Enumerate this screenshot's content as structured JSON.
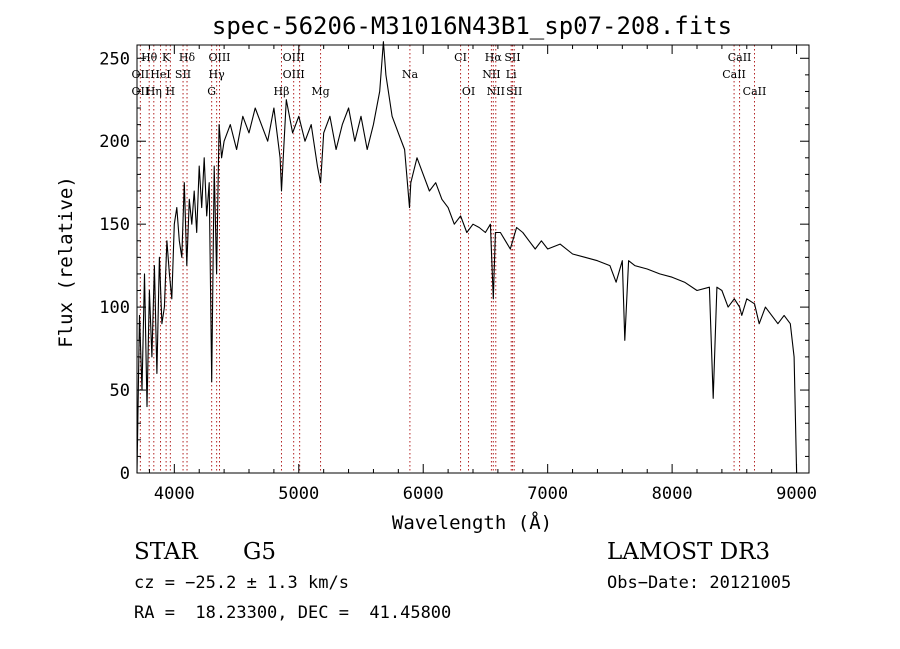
{
  "chart_data": {
    "type": "line",
    "title": "spec-56206-M31016N43B1_sp07-208.fits",
    "xlabel": "Wavelength (Å)",
    "ylabel": "Flux (relative)",
    "xlim": [
      3700,
      9100
    ],
    "ylim": [
      0,
      258
    ],
    "xticks": [
      4000,
      5000,
      6000,
      7000,
      8000,
      9000
    ],
    "xtick_labels": [
      "4000",
      "5000",
      "6000",
      "7000",
      "8000",
      "9000"
    ],
    "yticks": [
      0,
      50,
      100,
      150,
      200,
      250
    ],
    "ytick_labels": [
      "0",
      "50",
      "100",
      "150",
      "200",
      "250"
    ],
    "series": [
      {
        "name": "flux",
        "x": [
          3700,
          3720,
          3740,
          3760,
          3780,
          3800,
          3820,
          3840,
          3860,
          3880,
          3900,
          3920,
          3940,
          3960,
          3980,
          4000,
          4020,
          4040,
          4060,
          4080,
          4100,
          4120,
          4140,
          4160,
          4180,
          4200,
          4220,
          4240,
          4260,
          4280,
          4300,
          4320,
          4340,
          4360,
          4380,
          4400,
          4450,
          4500,
          4550,
          4600,
          4650,
          4700,
          4750,
          4800,
          4850,
          4861,
          4900,
          4950,
          5000,
          5050,
          5100,
          5150,
          5175,
          5200,
          5250,
          5300,
          5350,
          5400,
          5450,
          5500,
          5550,
          5600,
          5650,
          5680,
          5700,
          5750,
          5800,
          5850,
          5890,
          5900,
          5950,
          6000,
          6050,
          6100,
          6150,
          6200,
          6250,
          6300,
          6350,
          6400,
          6450,
          6500,
          6540,
          6563,
          6580,
          6620,
          6660,
          6700,
          6750,
          6800,
          6850,
          6900,
          6950,
          7000,
          7100,
          7200,
          7300,
          7400,
          7500,
          7550,
          7600,
          7620,
          7650,
          7700,
          7800,
          7900,
          8000,
          8100,
          8200,
          8300,
          8330,
          8360,
          8400,
          8450,
          8500,
          8542,
          8560,
          8600,
          8662,
          8700,
          8750,
          8800,
          8850,
          8900,
          8950,
          8980,
          9000
        ],
        "y": [
          0,
          95,
          50,
          120,
          40,
          110,
          70,
          125,
          60,
          130,
          90,
          100,
          140,
          120,
          105,
          150,
          160,
          140,
          130,
          175,
          125,
          165,
          150,
          170,
          145,
          185,
          160,
          190,
          155,
          175,
          55,
          185,
          120,
          210,
          190,
          200,
          210,
          195,
          215,
          205,
          220,
          210,
          200,
          220,
          190,
          170,
          225,
          205,
          215,
          200,
          210,
          185,
          175,
          205,
          215,
          195,
          210,
          220,
          200,
          215,
          195,
          210,
          230,
          260,
          240,
          215,
          205,
          195,
          160,
          175,
          190,
          180,
          170,
          175,
          165,
          160,
          150,
          155,
          145,
          150,
          148,
          145,
          150,
          105,
          145,
          145,
          140,
          135,
          148,
          145,
          140,
          135,
          140,
          135,
          138,
          132,
          130,
          128,
          125,
          115,
          128,
          80,
          128,
          125,
          123,
          120,
          118,
          115,
          110,
          112,
          45,
          112,
          110,
          100,
          105,
          100,
          95,
          105,
          102,
          90,
          100,
          95,
          90,
          95,
          90,
          70,
          0
        ]
      }
    ],
    "line_labels": [
      {
        "label": "Hθ",
        "wavelength": 3798,
        "row": 1
      },
      {
        "label": "K",
        "wavelength": 3934,
        "row": 1
      },
      {
        "label": "Hδ",
        "wavelength": 4102,
        "row": 1
      },
      {
        "label": "OIII",
        "wavelength": 4363,
        "row": 1
      },
      {
        "label": "OIII",
        "wavelength": 4959,
        "row": 1
      },
      {
        "label": "CI",
        "wavelength": 6300,
        "row": 1
      },
      {
        "label": "Hα",
        "wavelength": 6563,
        "row": 1
      },
      {
        "label": "SII",
        "wavelength": 6717,
        "row": 1
      },
      {
        "label": "CaII",
        "wavelength": 8542,
        "row": 1
      },
      {
        "label": "OII",
        "wavelength": 3727,
        "row": 2
      },
      {
        "label": "HeI",
        "wavelength": 3889,
        "row": 2
      },
      {
        "label": "SII",
        "wavelength": 4070,
        "row": 2
      },
      {
        "label": "Hγ",
        "wavelength": 4340,
        "row": 2
      },
      {
        "label": "OIII",
        "wavelength": 4959,
        "row": 2
      },
      {
        "label": "Na",
        "wavelength": 5893,
        "row": 2
      },
      {
        "label": "NII",
        "wavelength": 6548,
        "row": 2
      },
      {
        "label": "Li",
        "wavelength": 6707,
        "row": 2
      },
      {
        "label": "CaII",
        "wavelength": 8498,
        "row": 2
      },
      {
        "label": "OII",
        "wavelength": 3727,
        "row": 3
      },
      {
        "label": "Hη",
        "wavelength": 3835,
        "row": 3
      },
      {
        "label": "H",
        "wavelength": 3968,
        "row": 3
      },
      {
        "label": "G",
        "wavelength": 4300,
        "row": 3
      },
      {
        "label": "Hβ",
        "wavelength": 4861,
        "row": 3
      },
      {
        "label": "Mg",
        "wavelength": 5175,
        "row": 3
      },
      {
        "label": "OI",
        "wavelength": 6364,
        "row": 3
      },
      {
        "label": "NII",
        "wavelength": 6583,
        "row": 3
      },
      {
        "label": "SII",
        "wavelength": 6731,
        "row": 3
      },
      {
        "label": "CaII",
        "wavelength": 8662,
        "row": 3
      }
    ],
    "line_markers": [
      3727,
      3798,
      3835,
      3889,
      3934,
      3968,
      4070,
      4102,
      4300,
      4340,
      4363,
      4861,
      4959,
      5007,
      5175,
      5893,
      6300,
      6364,
      6548,
      6563,
      6583,
      6707,
      6717,
      6731,
      8498,
      8542,
      8662
    ]
  },
  "info": {
    "object_class": "STAR",
    "subclass": "G5",
    "survey": "LAMOST DR3",
    "cz": "cz = −25.2 ± 1.3 km/s",
    "obs_date": "Obs−Date: 20121005",
    "coords": "RA =  18.23300, DEC =  41.45800"
  },
  "colors": {
    "axis": "#000000",
    "spectrum": "#000000",
    "markers": "#b22222"
  }
}
